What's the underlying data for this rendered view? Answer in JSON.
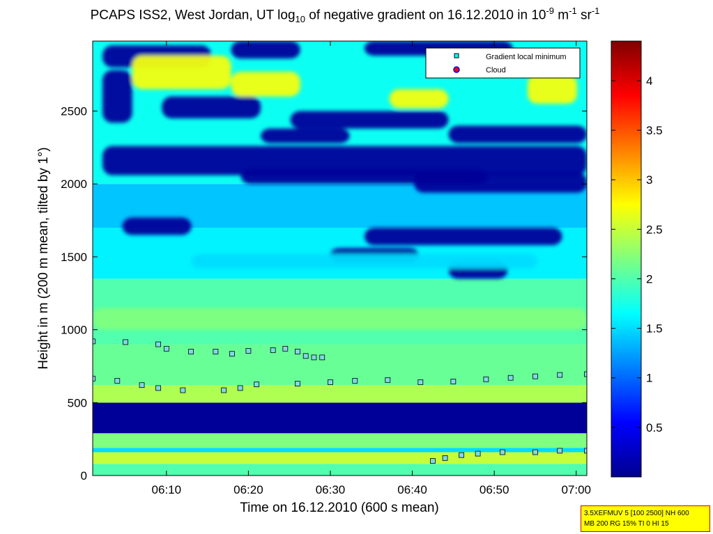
{
  "title": {
    "main": "PCAPS ISS2, West Jordan, UT log",
    "sub_base": "10",
    "mid": " of negative gradient on 16.12.2010 in 10",
    "sup_exp1": "-9",
    "unit_m": " m",
    "sup_exp2": "-1",
    "unit_sr": " sr",
    "sup_exp3": "-1"
  },
  "info_box": {
    "line1": "3.5XEFMUV 5 [100 2500] NH 600",
    "line2": "MB 200 RG 15% TI 0 HI 15"
  },
  "chart_data": {
    "type": "heatmap",
    "xlabel": "Time on 16.12.2010 (600 s mean)",
    "ylabel": "Height in m (200 m mean, tilted by 1°)",
    "x_range_minutes": [
      361,
      421.3
    ],
    "ylim": [
      0,
      2980
    ],
    "x_ticks": [
      {
        "minutes": 370,
        "label": "06:10"
      },
      {
        "minutes": 380,
        "label": "06:20"
      },
      {
        "minutes": 390,
        "label": "06:30"
      },
      {
        "minutes": 400,
        "label": "06:40"
      },
      {
        "minutes": 410,
        "label": "06:50"
      },
      {
        "minutes": 420,
        "label": "07:00"
      }
    ],
    "y_ticks": [
      0,
      500,
      1000,
      1500,
      2000,
      2500
    ],
    "colorbar": {
      "range": [
        0,
        4.4
      ],
      "ticks": [
        "0.5",
        "1",
        "1.5",
        "2",
        "2.5",
        "3",
        "3.5",
        "4"
      ],
      "colormap": "jet"
    },
    "legend": {
      "placement": "top-right",
      "entries": [
        {
          "label": "Gradient local minimum",
          "marker": "square",
          "color": "#00ffff"
        },
        {
          "label": "Cloud",
          "marker": "circle",
          "color": "#ff0000",
          "edge": "#0000ff"
        }
      ]
    },
    "heatmap_layers": [
      {
        "height_range": [
          0,
          80
        ],
        "value": 2.0
      },
      {
        "height_range": [
          80,
          160
        ],
        "value": 2.5
      },
      {
        "height_range": [
          160,
          190
        ],
        "value": 1.5
      },
      {
        "height_range": [
          190,
          290
        ],
        "value": 2.2
      },
      {
        "height_range": [
          290,
          500
        ],
        "value": 0.05
      },
      {
        "height_range": [
          500,
          620
        ],
        "value": 2.4
      },
      {
        "height_range": [
          620,
          900
        ],
        "value": 2.1
      },
      {
        "height_range": [
          900,
          1350
        ],
        "value": 2.0
      },
      {
        "height_range": [
          1350,
          1700
        ],
        "value": 1.6
      },
      {
        "height_range": [
          1700,
          2000
        ],
        "value": 1.4
      },
      {
        "height_range": [
          2000,
          2980
        ],
        "value": 1.7
      }
    ],
    "series": [
      {
        "name": "Gradient local minimum",
        "marker": "square",
        "points": [
          {
            "t": 361,
            "h": 920
          },
          {
            "t": 365,
            "h": 915
          },
          {
            "t": 369,
            "h": 900
          },
          {
            "t": 370,
            "h": 870
          },
          {
            "t": 373,
            "h": 850
          },
          {
            "t": 376,
            "h": 850
          },
          {
            "t": 378,
            "h": 835
          },
          {
            "t": 380,
            "h": 855
          },
          {
            "t": 383,
            "h": 860
          },
          {
            "t": 384.5,
            "h": 870
          },
          {
            "t": 386,
            "h": 850
          },
          {
            "t": 387,
            "h": 820
          },
          {
            "t": 388,
            "h": 810
          },
          {
            "t": 389,
            "h": 810
          },
          {
            "t": 361,
            "h": 665
          },
          {
            "t": 364,
            "h": 650
          },
          {
            "t": 367,
            "h": 620
          },
          {
            "t": 369,
            "h": 600
          },
          {
            "t": 372,
            "h": 585
          },
          {
            "t": 377,
            "h": 585
          },
          {
            "t": 379,
            "h": 600
          },
          {
            "t": 381,
            "h": 625
          },
          {
            "t": 386,
            "h": 630
          },
          {
            "t": 390,
            "h": 640
          },
          {
            "t": 393,
            "h": 650
          },
          {
            "t": 397,
            "h": 655
          },
          {
            "t": 401,
            "h": 640
          },
          {
            "t": 405,
            "h": 645
          },
          {
            "t": 409,
            "h": 660
          },
          {
            "t": 412,
            "h": 670
          },
          {
            "t": 415,
            "h": 680
          },
          {
            "t": 418,
            "h": 690
          },
          {
            "t": 421.3,
            "h": 695
          },
          {
            "t": 402.5,
            "h": 100
          },
          {
            "t": 404,
            "h": 120
          },
          {
            "t": 406,
            "h": 140
          },
          {
            "t": 408,
            "h": 150
          },
          {
            "t": 411,
            "h": 160
          },
          {
            "t": 415,
            "h": 160
          },
          {
            "t": 418,
            "h": 170
          },
          {
            "t": 421.3,
            "h": 170
          }
        ]
      }
    ]
  }
}
